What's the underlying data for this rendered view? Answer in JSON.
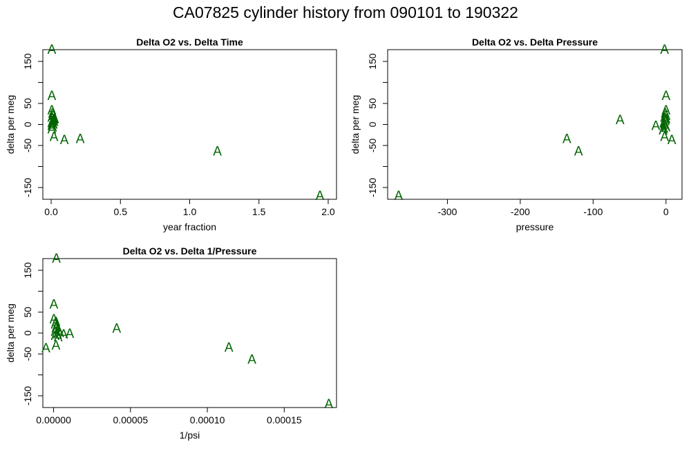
{
  "figure": {
    "title": "CA07825   cylinder history from  090101  to  190322"
  },
  "chart_data": [
    {
      "type": "scatter",
      "title": "Delta O2 vs. Delta Time",
      "xlabel": "year fraction",
      "ylabel": "delta per meg",
      "marker": "A",
      "marker_color": "#006400",
      "xlim": [
        -0.06,
        2.06
      ],
      "ylim": [
        -178,
        178
      ],
      "xticks": [
        0,
        0.5,
        1,
        1.5,
        2
      ],
      "xtick_labels": [
        "0.0",
        "0.5",
        "1.0",
        "1.5",
        "2.0"
      ],
      "yticks": [
        -150,
        -100,
        -50,
        0,
        50,
        100,
        150
      ],
      "ytick_labels": [
        "-150",
        "",
        "-50",
        "0",
        "50",
        "",
        "150"
      ],
      "points": [
        {
          "x": 0.005,
          "y": 180
        },
        {
          "x": 0.005,
          "y": 70
        },
        {
          "x": 0.005,
          "y": 35
        },
        {
          "x": 0.01,
          "y": 28
        },
        {
          "x": 0.015,
          "y": 22
        },
        {
          "x": 0.005,
          "y": 18
        },
        {
          "x": 0.02,
          "y": 14
        },
        {
          "x": 0.01,
          "y": 10
        },
        {
          "x": 0.005,
          "y": 5
        },
        {
          "x": 0.015,
          "y": 2
        },
        {
          "x": 0.005,
          "y": -2
        },
        {
          "x": 0.01,
          "y": -5
        },
        {
          "x": 0.005,
          "y": -10
        },
        {
          "x": 0.02,
          "y": 8
        },
        {
          "x": 0.025,
          "y": 15
        },
        {
          "x": 0.02,
          "y": -28
        },
        {
          "x": 0.095,
          "y": -35
        },
        {
          "x": 0.21,
          "y": -33
        },
        {
          "x": 1.2,
          "y": -62
        },
        {
          "x": 1.94,
          "y": -168
        }
      ]
    },
    {
      "type": "scatter",
      "title": "Delta O2 vs. Delta Pressure",
      "xlabel": "pressure",
      "ylabel": "delta per meg",
      "marker": "A",
      "marker_color": "#006400",
      "xlim": [
        -382,
        22
      ],
      "ylim": [
        -178,
        178
      ],
      "xticks": [
        -300,
        -200,
        -100,
        0
      ],
      "xtick_labels": [
        "-300",
        "-200",
        "-100",
        "0"
      ],
      "yticks": [
        -150,
        -100,
        -50,
        0,
        50,
        100,
        150
      ],
      "ytick_labels": [
        "-150",
        "",
        "-50",
        "0",
        "50",
        "",
        "150"
      ],
      "points": [
        {
          "x": -2,
          "y": 180
        },
        {
          "x": 0,
          "y": 70
        },
        {
          "x": 0,
          "y": 35
        },
        {
          "x": -1,
          "y": 28
        },
        {
          "x": 0,
          "y": 22
        },
        {
          "x": -2,
          "y": 18
        },
        {
          "x": 0,
          "y": 14
        },
        {
          "x": -1,
          "y": 10
        },
        {
          "x": -3,
          "y": 5
        },
        {
          "x": -2,
          "y": 2
        },
        {
          "x": -1,
          "y": -2
        },
        {
          "x": 0,
          "y": -5
        },
        {
          "x": -3,
          "y": -8
        },
        {
          "x": -4,
          "y": -12
        },
        {
          "x": -14,
          "y": -2
        },
        {
          "x": -2,
          "y": -28
        },
        {
          "x": 8,
          "y": -35
        },
        {
          "x": -63,
          "y": 12
        },
        {
          "x": -136,
          "y": -33
        },
        {
          "x": -120,
          "y": -62
        },
        {
          "x": -367,
          "y": -168
        }
      ]
    },
    {
      "type": "scatter",
      "title": "Delta O2 vs. Delta 1/Pressure",
      "xlabel": "1/psi",
      "ylabel": "delta per meg",
      "marker": "A",
      "marker_color": "#006400",
      "xlim": [
        -7e-06,
        0.000184
      ],
      "ylim": [
        -178,
        178
      ],
      "xticks": [
        0,
        5e-05,
        0.0001,
        0.00015
      ],
      "xtick_labels": [
        "0.00000",
        "0.00005",
        "0.00010",
        "0.00015"
      ],
      "yticks": [
        -150,
        -100,
        -50,
        0,
        50,
        100,
        150
      ],
      "ytick_labels": [
        "-150",
        "",
        "-50",
        "0",
        "50",
        "",
        "150"
      ],
      "points": [
        {
          "x": 1.8e-06,
          "y": 180
        },
        {
          "x": 2e-07,
          "y": 70
        },
        {
          "x": 2e-07,
          "y": 35
        },
        {
          "x": 1.5e-06,
          "y": 28
        },
        {
          "x": 1e-06,
          "y": 22
        },
        {
          "x": 2e-06,
          "y": 18
        },
        {
          "x": 1.5e-06,
          "y": 14
        },
        {
          "x": 3e-06,
          "y": 10
        },
        {
          "x": 1e-06,
          "y": 5
        },
        {
          "x": 4e-06,
          "y": 2
        },
        {
          "x": 2.5e-06,
          "y": -2
        },
        {
          "x": 1e-06,
          "y": -5
        },
        {
          "x": 3e-06,
          "y": -8
        },
        {
          "x": 6.5e-06,
          "y": -2
        },
        {
          "x": 1.05e-05,
          "y": 0
        },
        {
          "x": 1.5e-06,
          "y": -28
        },
        {
          "x": -5e-06,
          "y": -35
        },
        {
          "x": 4.1e-05,
          "y": 12
        },
        {
          "x": 0.000114,
          "y": -33
        },
        {
          "x": 0.000129,
          "y": -62
        },
        {
          "x": 0.000179,
          "y": -168
        }
      ]
    }
  ]
}
